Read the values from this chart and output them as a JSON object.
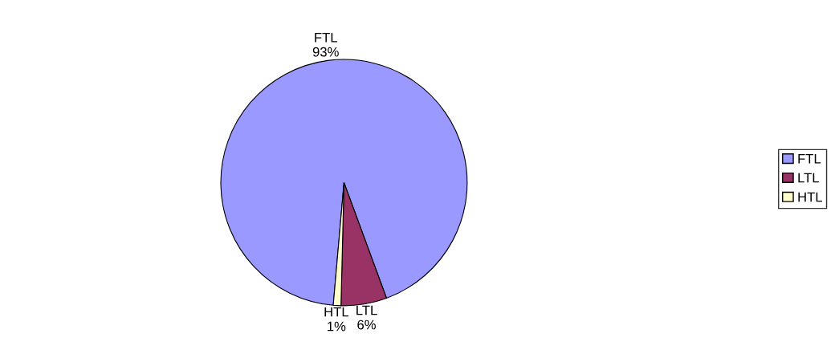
{
  "chart_data": {
    "type": "pie",
    "categories": [
      "FTL",
      "LTL",
      "HTL"
    ],
    "values": [
      93,
      6,
      1
    ],
    "colors": [
      "#9999ff",
      "#993366",
      "#ffffcc"
    ],
    "value_labels": [
      "93%",
      "6%",
      "1%"
    ],
    "legend": "right"
  }
}
